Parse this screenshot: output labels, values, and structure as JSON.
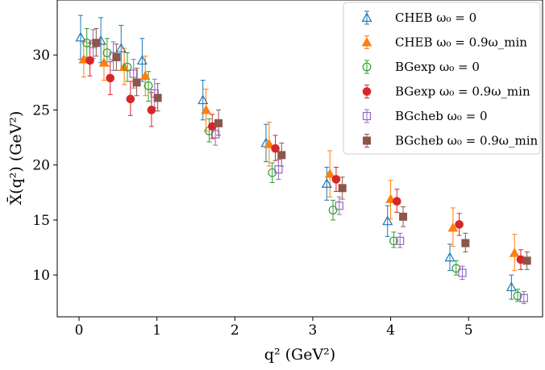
{
  "chart_data": {
    "type": "scatter",
    "xlabel": "q² (GeV²)",
    "ylabel": "X̄(q²) (GeV²)",
    "xlim": [
      -0.28,
      5.95
    ],
    "ylim": [
      6.2,
      35.0
    ],
    "xticks": [
      0,
      1,
      2,
      3,
      4,
      5
    ],
    "yticks": [
      10,
      15,
      20,
      25,
      30
    ],
    "legend_position": "top-right",
    "grid": false,
    "series": [
      {
        "name": "CHEB ω₀ = 0",
        "marker": "triangle-open",
        "color": "#1f77b4",
        "points": [
          {
            "x": 0.02,
            "y": 31.6,
            "lo": 29.6,
            "hi": 33.6
          },
          {
            "x": 0.28,
            "y": 31.3,
            "lo": 29.3,
            "hi": 33.4
          },
          {
            "x": 0.54,
            "y": 30.6,
            "lo": 28.6,
            "hi": 32.7
          },
          {
            "x": 0.81,
            "y": 29.5,
            "lo": 27.6,
            "hi": 31.5
          },
          {
            "x": 1.59,
            "y": 25.9,
            "lo": 24.1,
            "hi": 27.7
          },
          {
            "x": 2.4,
            "y": 22.0,
            "lo": 20.3,
            "hi": 23.7
          },
          {
            "x": 3.18,
            "y": 18.3,
            "lo": 16.8,
            "hi": 19.8
          },
          {
            "x": 3.96,
            "y": 14.9,
            "lo": 13.5,
            "hi": 16.3
          },
          {
            "x": 4.76,
            "y": 11.6,
            "lo": 10.4,
            "hi": 12.8
          },
          {
            "x": 5.55,
            "y": 8.9,
            "lo": 7.8,
            "hi": 10.0
          }
        ]
      },
      {
        "name": "CHEB ω₀ = 0.9ω_min",
        "marker": "triangle-filled",
        "color": "#ff7f0e",
        "points": [
          {
            "x": 0.06,
            "y": 29.6,
            "lo": 28.0,
            "hi": 31.2
          },
          {
            "x": 0.32,
            "y": 29.3,
            "lo": 27.7,
            "hi": 31.0
          },
          {
            "x": 0.58,
            "y": 28.9,
            "lo": 27.3,
            "hi": 30.6
          },
          {
            "x": 0.85,
            "y": 28.1,
            "lo": 26.3,
            "hi": 29.9
          },
          {
            "x": 1.63,
            "y": 25.0,
            "lo": 23.1,
            "hi": 26.9
          },
          {
            "x": 2.44,
            "y": 21.9,
            "lo": 19.9,
            "hi": 23.9
          },
          {
            "x": 3.22,
            "y": 19.2,
            "lo": 17.1,
            "hi": 21.3
          },
          {
            "x": 4.0,
            "y": 16.9,
            "lo": 15.1,
            "hi": 18.6
          },
          {
            "x": 4.8,
            "y": 14.3,
            "lo": 12.6,
            "hi": 16.1
          },
          {
            "x": 5.59,
            "y": 12.0,
            "lo": 10.4,
            "hi": 13.7
          }
        ]
      },
      {
        "name": "BGexp ω₀ = 0",
        "marker": "circle-open",
        "color": "#2ca02c",
        "points": [
          {
            "x": 0.1,
            "y": 31.1,
            "lo": 29.8,
            "hi": 32.4
          },
          {
            "x": 0.36,
            "y": 30.2,
            "lo": 29.0,
            "hi": 31.5
          },
          {
            "x": 0.62,
            "y": 28.9,
            "lo": 27.6,
            "hi": 30.2
          },
          {
            "x": 0.89,
            "y": 27.2,
            "lo": 25.8,
            "hi": 28.5
          },
          {
            "x": 1.67,
            "y": 23.1,
            "lo": 22.1,
            "hi": 24.2
          },
          {
            "x": 2.48,
            "y": 19.3,
            "lo": 18.4,
            "hi": 20.2
          },
          {
            "x": 3.26,
            "y": 15.9,
            "lo": 15.0,
            "hi": 16.8
          },
          {
            "x": 4.04,
            "y": 13.1,
            "lo": 12.5,
            "hi": 13.9
          },
          {
            "x": 4.84,
            "y": 10.6,
            "lo": 10.0,
            "hi": 11.3
          },
          {
            "x": 5.63,
            "y": 8.1,
            "lo": 7.6,
            "hi": 8.7
          }
        ]
      },
      {
        "name": "BGexp ω₀ = 0.9ω_min",
        "marker": "circle-filled",
        "color": "#d62728",
        "points": [
          {
            "x": 0.14,
            "y": 29.5,
            "lo": 28.1,
            "hi": 31.1
          },
          {
            "x": 0.4,
            "y": 27.9,
            "lo": 26.4,
            "hi": 29.4
          },
          {
            "x": 0.66,
            "y": 26.0,
            "lo": 24.5,
            "hi": 27.6
          },
          {
            "x": 0.93,
            "y": 25.0,
            "lo": 23.5,
            "hi": 26.6
          },
          {
            "x": 1.71,
            "y": 23.5,
            "lo": 22.4,
            "hi": 24.6
          },
          {
            "x": 2.52,
            "y": 21.5,
            "lo": 20.4,
            "hi": 22.7
          },
          {
            "x": 3.3,
            "y": 18.7,
            "lo": 17.6,
            "hi": 19.8
          },
          {
            "x": 4.08,
            "y": 16.7,
            "lo": 15.7,
            "hi": 17.8
          },
          {
            "x": 4.88,
            "y": 14.6,
            "lo": 13.6,
            "hi": 15.6
          },
          {
            "x": 5.67,
            "y": 11.4,
            "lo": 10.5,
            "hi": 12.3
          }
        ]
      },
      {
        "name": "BGcheb ω₀ = 0",
        "marker": "square-open",
        "color": "#9467bd",
        "points": [
          {
            "x": 0.18,
            "y": 31.0,
            "lo": 29.7,
            "hi": 32.3
          },
          {
            "x": 0.44,
            "y": 29.9,
            "lo": 28.6,
            "hi": 31.2
          },
          {
            "x": 0.7,
            "y": 28.3,
            "lo": 27.0,
            "hi": 29.6
          },
          {
            "x": 0.97,
            "y": 26.5,
            "lo": 25.2,
            "hi": 27.8
          },
          {
            "x": 1.75,
            "y": 22.8,
            "lo": 21.8,
            "hi": 23.8
          },
          {
            "x": 2.56,
            "y": 19.6,
            "lo": 18.7,
            "hi": 20.5
          },
          {
            "x": 3.34,
            "y": 16.3,
            "lo": 15.5,
            "hi": 17.1
          },
          {
            "x": 4.12,
            "y": 13.1,
            "lo": 12.5,
            "hi": 13.8
          },
          {
            "x": 4.92,
            "y": 10.2,
            "lo": 9.6,
            "hi": 10.8
          },
          {
            "x": 5.71,
            "y": 7.9,
            "lo": 7.4,
            "hi": 8.5
          }
        ]
      },
      {
        "name": "BGcheb ω₀ = 0.9ω_min",
        "marker": "square-filled",
        "color": "#8c564b",
        "points": [
          {
            "x": 0.22,
            "y": 31.1,
            "lo": 29.9,
            "hi": 32.4
          },
          {
            "x": 0.48,
            "y": 29.8,
            "lo": 28.6,
            "hi": 31.0
          },
          {
            "x": 0.74,
            "y": 27.5,
            "lo": 26.3,
            "hi": 28.8
          },
          {
            "x": 1.01,
            "y": 26.1,
            "lo": 24.9,
            "hi": 27.4
          },
          {
            "x": 1.79,
            "y": 23.8,
            "lo": 22.7,
            "hi": 25.0
          },
          {
            "x": 2.6,
            "y": 20.9,
            "lo": 19.9,
            "hi": 22.0
          },
          {
            "x": 3.38,
            "y": 17.9,
            "lo": 16.9,
            "hi": 18.9
          },
          {
            "x": 4.16,
            "y": 15.3,
            "lo": 14.4,
            "hi": 16.2
          },
          {
            "x": 4.96,
            "y": 12.9,
            "lo": 12.1,
            "hi": 13.8
          },
          {
            "x": 5.75,
            "y": 11.3,
            "lo": 10.5,
            "hi": 12.1
          }
        ]
      }
    ]
  }
}
